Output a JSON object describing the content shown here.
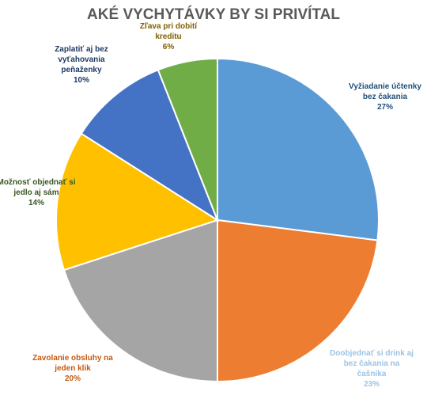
{
  "chart_data": {
    "type": "pie",
    "title": "AKÉ VYCHYTÁVKY BY SI PRIVÍTAL",
    "start_angle_deg": 0,
    "direction": "clockwise",
    "slices": [
      {
        "label_lines": [
          "Vyžiadanie účtenky",
          "bez čakania"
        ],
        "value": 27,
        "value_text": "27%",
        "color": "#5B9BD5",
        "label_color": "#1F4E79"
      },
      {
        "label_lines": [
          "Doobjednať si drink aj",
          "bez čakania na",
          "čašníka"
        ],
        "value": 23,
        "value_text": "23%",
        "color": "#ED7D31",
        "label_color": "#9DC3E6"
      },
      {
        "label_lines": [
          "Zavolanie obsluhy na",
          "jeden klik"
        ],
        "value": 20,
        "value_text": "20%",
        "color": "#A5A5A5",
        "label_color": "#C55A11"
      },
      {
        "label_lines": [
          "Možnosť objednať si",
          "jedlo aj sám"
        ],
        "value": 14,
        "value_text": "14%",
        "color": "#FFC000",
        "label_color": "#375623"
      },
      {
        "label_lines": [
          "Zaplatiť aj bez",
          "vyťahovania",
          "peňaženky"
        ],
        "value": 10,
        "value_text": "10%",
        "color": "#4472C4",
        "label_color": "#1F3864"
      },
      {
        "label_lines": [
          "Zľava pri dobití",
          "kreditu"
        ],
        "value": 6,
        "value_text": "6%",
        "color": "#70AD47",
        "label_color": "#7F6000"
      }
    ]
  }
}
